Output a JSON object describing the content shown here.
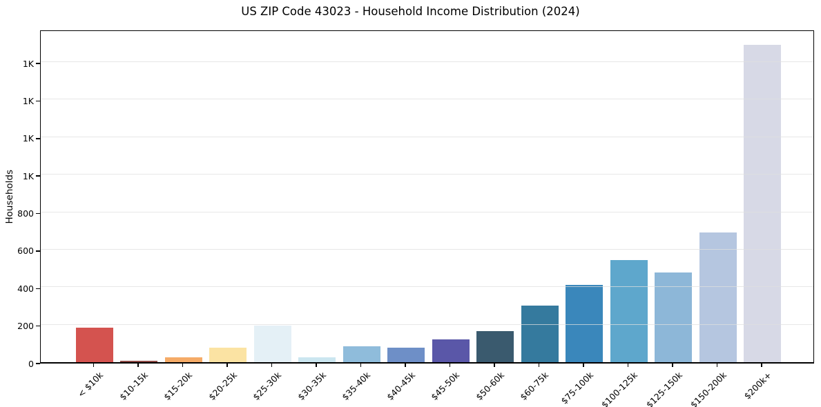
{
  "chart_data": {
    "type": "bar",
    "title": "US ZIP Code 43023 - Household Income Distribution (2024)",
    "xlabel": "",
    "ylabel": "Households",
    "categories": [
      "< $10k",
      "$10-15k",
      "$15-20k",
      "$20-25k",
      "$25-30k",
      "$30-35k",
      "$35-40k",
      "$40-45k",
      "$45-50k",
      "$50-60k",
      "$60-75k",
      "$75-100k",
      "$100-125k",
      "$125-150k",
      "$150-200k",
      "$200k+"
    ],
    "values": [
      183,
      6,
      27,
      76,
      195,
      27,
      83,
      78,
      121,
      164,
      300,
      413,
      546,
      480,
      693,
      1692
    ],
    "bar_colors": [
      "#d4534f",
      "#8e4a45",
      "#f5ab67",
      "#fbe3a3",
      "#e4f0f6",
      "#cbe6f0",
      "#8fbcdb",
      "#6e8fc7",
      "#5a57a8",
      "#3a5a6e",
      "#357a9e",
      "#3a87bb",
      "#5ea7cc",
      "#8db7d8",
      "#b5c6e0",
      "#d7d9e6"
    ],
    "ylim": [
      0,
      1777
    ],
    "yticks": [
      {
        "value": 0,
        "label": "0"
      },
      {
        "value": 200,
        "label": "200"
      },
      {
        "value": 400,
        "label": "400"
      },
      {
        "value": 600,
        "label": "600"
      },
      {
        "value": 800,
        "label": "800"
      },
      {
        "value": 1000,
        "label": "1K"
      },
      {
        "value": 1200,
        "label": "1K"
      },
      {
        "value": 1400,
        "label": "1K"
      },
      {
        "value": 1600,
        "label": "1K"
      }
    ],
    "grid": "horizontal",
    "legend": "none"
  }
}
